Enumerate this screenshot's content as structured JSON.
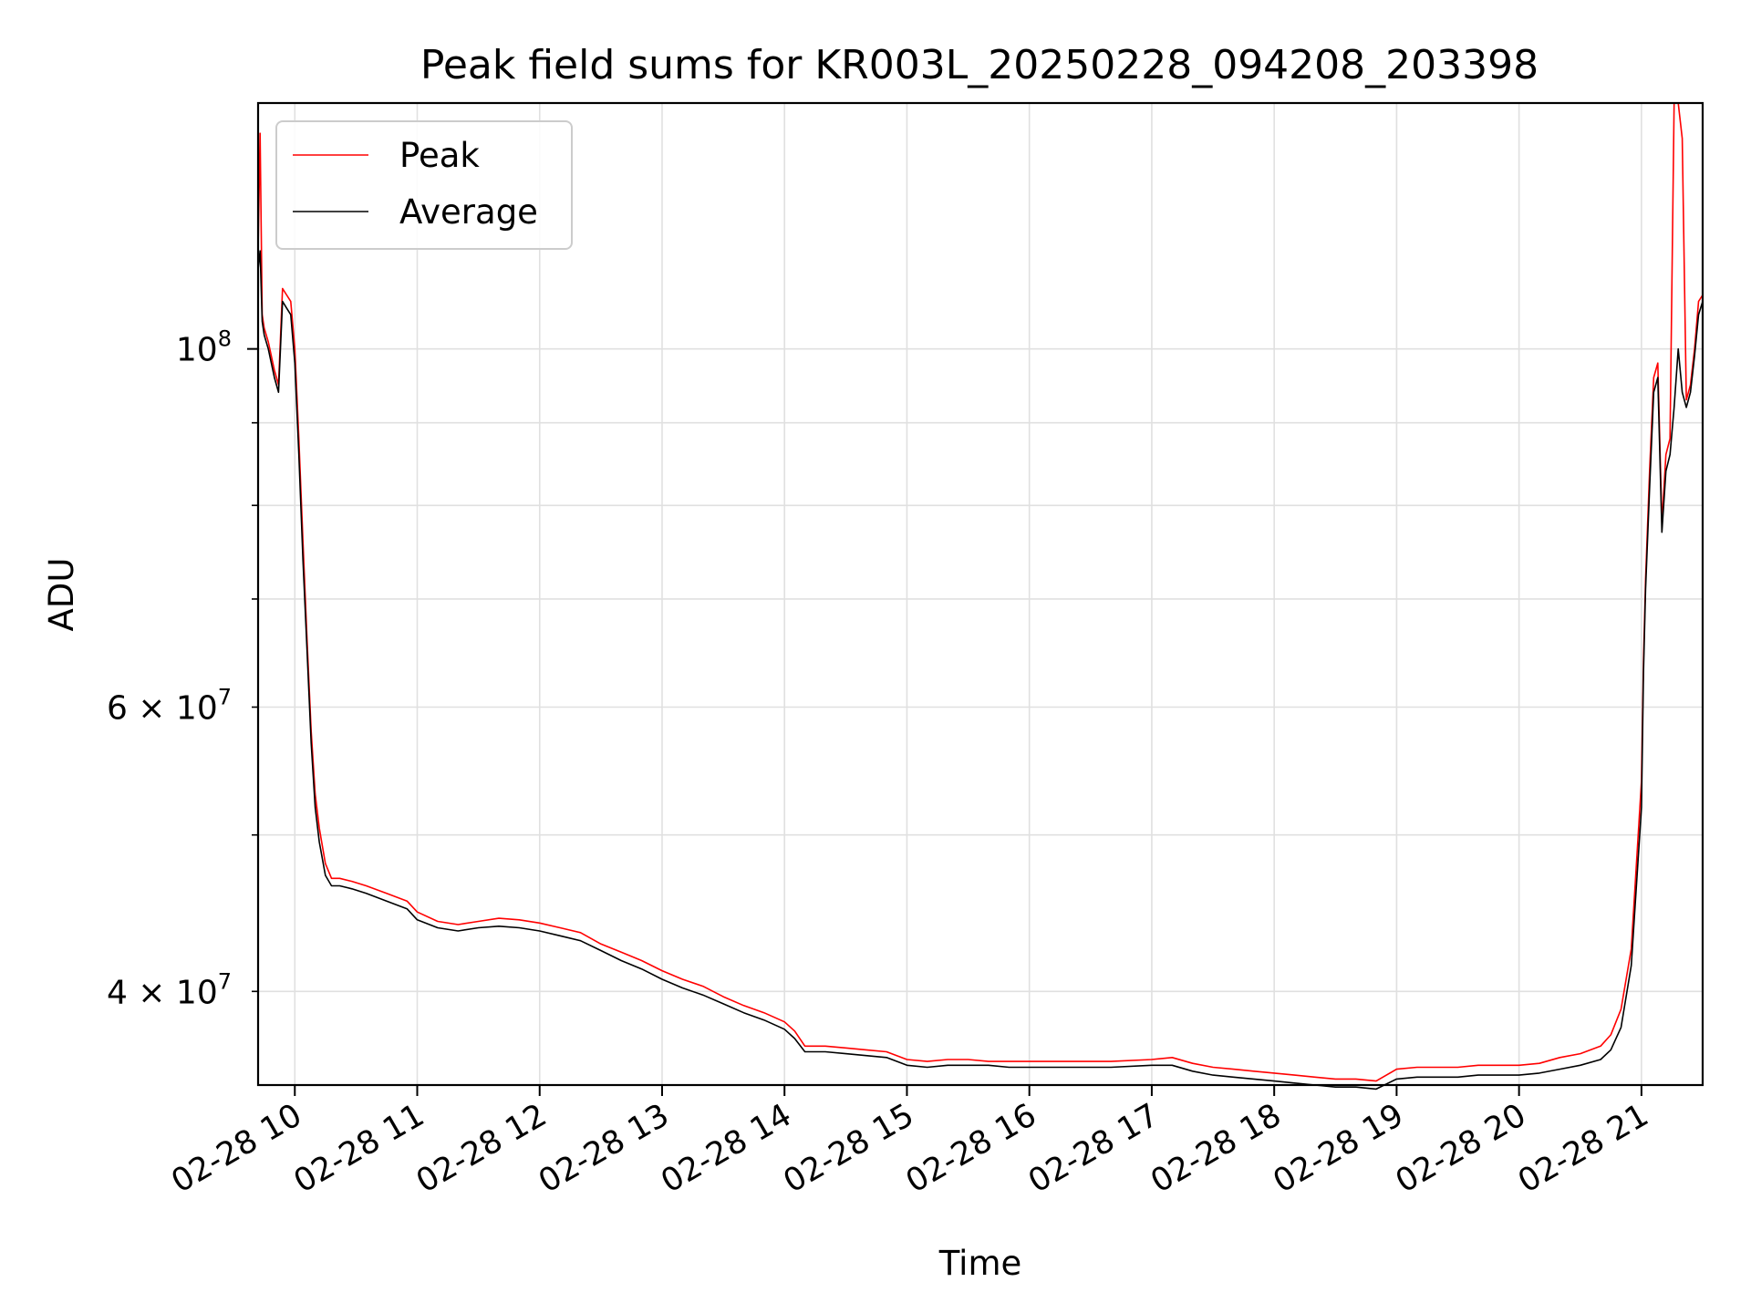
{
  "chart_data": {
    "type": "line",
    "title": "Peak field sums for KR003L_20250228_094208_203398",
    "xlabel": "Time",
    "ylabel": "ADU",
    "yscale": "log",
    "ylim": [
      35000000,
      142000000
    ],
    "xlim": [
      "02-28 09:42",
      "02-28 21:30"
    ],
    "grid": true,
    "legend_position": "upper-left",
    "x_ticks": [
      {
        "t": "10:00",
        "label": "02-28 10"
      },
      {
        "t": "11:00",
        "label": "02-28 11"
      },
      {
        "t": "12:00",
        "label": "02-28 12"
      },
      {
        "t": "13:00",
        "label": "02-28 13"
      },
      {
        "t": "14:00",
        "label": "02-28 14"
      },
      {
        "t": "15:00",
        "label": "02-28 15"
      },
      {
        "t": "16:00",
        "label": "02-28 16"
      },
      {
        "t": "17:00",
        "label": "02-28 17"
      },
      {
        "t": "18:00",
        "label": "02-28 18"
      },
      {
        "t": "19:00",
        "label": "02-28 19"
      },
      {
        "t": "20:00",
        "label": "02-28 20"
      },
      {
        "t": "21:00",
        "label": "02-28 21"
      }
    ],
    "y_major_ticks": [
      {
        "value": 100000000,
        "base": "10",
        "exp": "8"
      }
    ],
    "y_minor_ticks": [
      {
        "value": 40000000,
        "base": "4 × 10",
        "exp": "7"
      },
      {
        "value": 50000000,
        "base": "",
        "exp": ""
      },
      {
        "value": 60000000,
        "base": "6 × 10",
        "exp": "7"
      },
      {
        "value": 70000000,
        "base": "",
        "exp": ""
      },
      {
        "value": 80000000,
        "base": "",
        "exp": ""
      },
      {
        "value": 90000000,
        "base": "",
        "exp": ""
      }
    ],
    "series": [
      {
        "name": "Peak",
        "color": "#ff0000",
        "x": [
          "09:42",
          "09:43",
          "09:44",
          "09:45",
          "09:47",
          "09:50",
          "09:52",
          "09:54",
          "09:56",
          "09:58",
          "10:00",
          "10:02",
          "10:04",
          "10:06",
          "10:08",
          "10:10",
          "10:12",
          "10:15",
          "10:18",
          "10:22",
          "10:28",
          "10:35",
          "10:45",
          "10:55",
          "11:00",
          "11:10",
          "11:20",
          "11:30",
          "11:40",
          "11:50",
          "12:00",
          "12:10",
          "12:20",
          "12:30",
          "12:40",
          "12:50",
          "13:00",
          "13:10",
          "13:20",
          "13:30",
          "13:40",
          "13:50",
          "14:00",
          "14:05",
          "14:10",
          "14:20",
          "14:30",
          "14:40",
          "14:50",
          "15:00",
          "15:10",
          "15:20",
          "15:30",
          "15:40",
          "15:50",
          "16:00",
          "16:20",
          "16:40",
          "17:00",
          "17:10",
          "17:20",
          "17:30",
          "17:40",
          "17:50",
          "18:00",
          "18:10",
          "18:20",
          "18:30",
          "18:40",
          "18:50",
          "19:00",
          "19:10",
          "19:20",
          "19:30",
          "19:40",
          "19:50",
          "20:00",
          "20:10",
          "20:20",
          "20:30",
          "20:40",
          "20:45",
          "20:50",
          "20:55",
          "21:00",
          "21:01",
          "21:02",
          "21:04",
          "21:06",
          "21:08",
          "21:10",
          "21:12",
          "21:14",
          "21:16",
          "21:18",
          "21:20",
          "21:22",
          "21:24",
          "21:26",
          "21:28",
          "21:30"
        ],
        "y": [
          115000000,
          136000000,
          105000000,
          103000000,
          101000000,
          97000000,
          95000000,
          109000000,
          108000000,
          107000000,
          100000000,
          88000000,
          76000000,
          66000000,
          58000000,
          53000000,
          50500000,
          48000000,
          47000000,
          47000000,
          46800000,
          46500000,
          46000000,
          45500000,
          44800000,
          44200000,
          44000000,
          44200000,
          44400000,
          44300000,
          44100000,
          43800000,
          43500000,
          42800000,
          42300000,
          41800000,
          41200000,
          40700000,
          40300000,
          39700000,
          39200000,
          38800000,
          38300000,
          37800000,
          37000000,
          37000000,
          36900000,
          36800000,
          36700000,
          36300000,
          36200000,
          36300000,
          36300000,
          36200000,
          36200000,
          36200000,
          36200000,
          36200000,
          36300000,
          36400000,
          36100000,
          35900000,
          35800000,
          35700000,
          35600000,
          35500000,
          35400000,
          35300000,
          35300000,
          35200000,
          35800000,
          35900000,
          35900000,
          35900000,
          36000000,
          36000000,
          36000000,
          36100000,
          36400000,
          36600000,
          37000000,
          37600000,
          39000000,
          42500000,
          54000000,
          64000000,
          72000000,
          84000000,
          96000000,
          98000000,
          78000000,
          86000000,
          88000000,
          142000000,
          142000000,
          135000000,
          93000000,
          95000000,
          100000000,
          107000000,
          108000000
        ]
      },
      {
        "name": "Average",
        "color": "#000000",
        "x": [
          "09:42",
          "09:43",
          "09:44",
          "09:45",
          "09:47",
          "09:50",
          "09:52",
          "09:54",
          "09:56",
          "09:58",
          "10:00",
          "10:02",
          "10:04",
          "10:06",
          "10:08",
          "10:10",
          "10:12",
          "10:15",
          "10:18",
          "10:22",
          "10:28",
          "10:35",
          "10:45",
          "10:55",
          "11:00",
          "11:10",
          "11:20",
          "11:30",
          "11:40",
          "11:50",
          "12:00",
          "12:10",
          "12:20",
          "12:30",
          "12:40",
          "12:50",
          "13:00",
          "13:10",
          "13:20",
          "13:30",
          "13:40",
          "13:50",
          "14:00",
          "14:05",
          "14:10",
          "14:20",
          "14:30",
          "14:40",
          "14:50",
          "15:00",
          "15:10",
          "15:20",
          "15:30",
          "15:40",
          "15:50",
          "16:00",
          "16:20",
          "16:40",
          "17:00",
          "17:10",
          "17:20",
          "17:30",
          "17:40",
          "17:50",
          "18:00",
          "18:10",
          "18:20",
          "18:30",
          "18:40",
          "18:50",
          "19:00",
          "19:10",
          "19:20",
          "19:30",
          "19:40",
          "19:50",
          "20:00",
          "20:10",
          "20:20",
          "20:30",
          "20:40",
          "20:45",
          "20:50",
          "20:55",
          "21:00",
          "21:01",
          "21:02",
          "21:04",
          "21:06",
          "21:08",
          "21:10",
          "21:12",
          "21:14",
          "21:16",
          "21:18",
          "21:20",
          "21:22",
          "21:24",
          "21:26",
          "21:28",
          "21:30"
        ],
        "y": [
          112000000,
          115000000,
          104000000,
          102000000,
          100000000,
          96000000,
          94000000,
          107000000,
          106000000,
          105000000,
          98000000,
          86000000,
          74000000,
          65000000,
          57000000,
          52000000,
          49500000,
          47200000,
          46500000,
          46500000,
          46300000,
          46000000,
          45500000,
          45000000,
          44300000,
          43800000,
          43600000,
          43800000,
          43900000,
          43800000,
          43600000,
          43300000,
          43000000,
          42400000,
          41800000,
          41300000,
          40700000,
          40200000,
          39800000,
          39300000,
          38800000,
          38400000,
          37900000,
          37400000,
          36700000,
          36700000,
          36600000,
          36500000,
          36400000,
          36000000,
          35900000,
          36000000,
          36000000,
          36000000,
          35900000,
          35900000,
          35900000,
          35900000,
          36000000,
          36000000,
          35700000,
          35500000,
          35400000,
          35300000,
          35200000,
          35100000,
          35000000,
          34900000,
          34900000,
          34800000,
          35300000,
          35400000,
          35400000,
          35400000,
          35500000,
          35500000,
          35500000,
          35600000,
          35800000,
          36000000,
          36300000,
          36800000,
          38000000,
          41500000,
          52000000,
          63000000,
          71000000,
          82000000,
          94000000,
          96000000,
          77000000,
          84000000,
          86000000,
          92000000,
          100000000,
          94000000,
          92000000,
          94000000,
          99000000,
          105000000,
          107000000
        ]
      }
    ]
  }
}
